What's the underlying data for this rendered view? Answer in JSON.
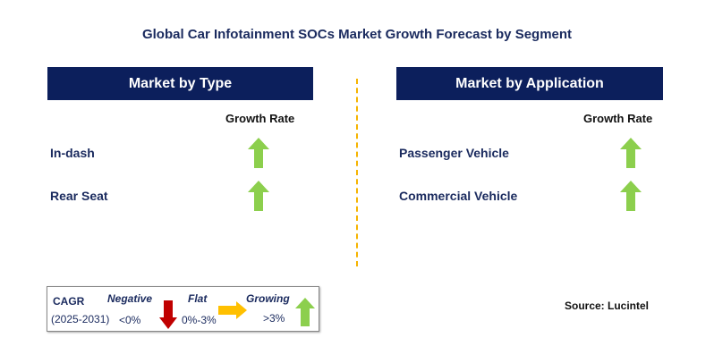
{
  "title": "Global Car Infotainment SOCs Market Growth Forecast by Segment",
  "left": {
    "header": "Market by Type",
    "growth_label": "Growth Rate",
    "items": [
      {
        "label": "In-dash",
        "trend": "growing"
      },
      {
        "label": "Rear Seat",
        "trend": "growing"
      }
    ]
  },
  "right": {
    "header": "Market by Application",
    "growth_label": "Growth Rate",
    "items": [
      {
        "label": "Passenger Vehicle",
        "trend": "growing"
      },
      {
        "label": "Commercial Vehicle",
        "trend": "growing"
      }
    ]
  },
  "legend": {
    "cagr": "CAGR",
    "period": "(2025-2031)",
    "negative": "Negative",
    "negative_range": "<0%",
    "flat": "Flat",
    "flat_range": "0%-3%",
    "growing": "Growing",
    "growing_range": ">3%"
  },
  "source": "Source: Lucintel",
  "colors": {
    "header": "#0c1f5c",
    "growing": "#8ccf4d",
    "negative": "#c00000",
    "flat": "#ffc000"
  }
}
